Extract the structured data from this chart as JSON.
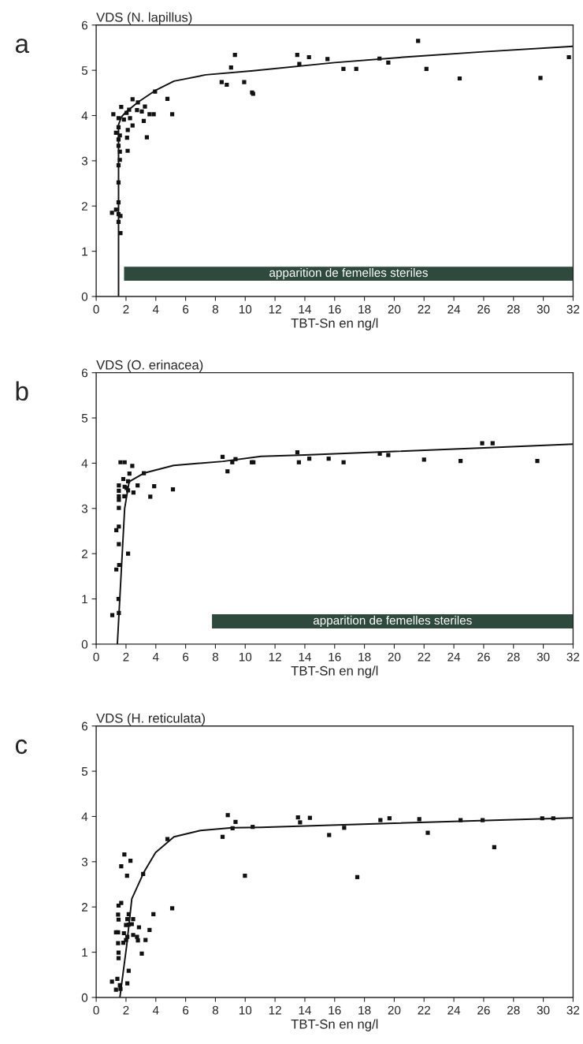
{
  "chart_data": [
    {
      "type": "scatter",
      "title": "VDS (N. lapillus)",
      "xlabel": "TBT-Sn en ng/l",
      "annotations": [
        "a"
      ],
      "grid": false,
      "legend": false,
      "xlim": [
        0,
        32
      ],
      "ylim": [
        0,
        6
      ],
      "xticks": [
        0,
        2,
        4,
        6,
        8,
        10,
        12,
        14,
        16,
        18,
        20,
        22,
        24,
        26,
        28,
        30,
        32
      ],
      "yticks": [
        0,
        1,
        2,
        3,
        4,
        5,
        6
      ],
      "bands": [
        {
          "axis": "x",
          "from": 1.87,
          "to": 32,
          "label": "apparition de femelles steriles",
          "color": "#2d4a3c"
        }
      ],
      "series": [
        {
          "marker": "square",
          "color": "#111111",
          "x": [
            1.06,
            1.33,
            1.5,
            1.5,
            1.63,
            1.5,
            1.63,
            1.5,
            1.5,
            1.59,
            1.59,
            1.5,
            1.5,
            1.33,
            1.59,
            1.5,
            1.5,
            1.15,
            1.68,
            1.86,
            2.04,
            2.21,
            2.27,
            2.12,
            2.07,
            2.11,
            2.44,
            2.44,
            2.8,
            2.74,
            3.06,
            3.27,
            3.19,
            3.4,
            3.58,
            3.86,
            3.95,
            4.78,
            5.1,
            8.42,
            8.76,
            9.05,
            9.31,
            9.93,
            10.46,
            10.53,
            13.49,
            13.63,
            14.28,
            15.52,
            16.59,
            17.45,
            19.01,
            19.6,
            21.6,
            22.16,
            24.39,
            29.81,
            31.72
          ],
          "values": [
            1.85,
            1.92,
            2.08,
            1.82,
            1.78,
            1.65,
            1.4,
            2.52,
            2.9,
            3.02,
            3.2,
            3.33,
            3.47,
            3.62,
            3.56,
            3.74,
            3.94,
            4.03,
            4.19,
            3.91,
            4.06,
            4.13,
            3.94,
            3.68,
            3.51,
            3.22,
            3.78,
            4.36,
            4.29,
            4.12,
            4.09,
            4.2,
            3.88,
            3.52,
            4.03,
            4.03,
            4.53,
            4.37,
            4.03,
            4.74,
            4.68,
            5.06,
            5.34,
            4.74,
            4.51,
            4.48,
            5.34,
            5.14,
            5.29,
            5.25,
            5.03,
            5.03,
            5.26,
            5.17,
            5.65,
            5.03,
            4.82,
            4.83,
            5.29
          ]
        },
        {
          "type": "line",
          "marker": "none",
          "color": "#111111",
          "x": [
            1.5,
            1.5,
            1.7,
            2.0,
            2.83,
            3.95,
            5.22,
            7.35,
            10.53,
            16,
            21,
            26,
            32
          ],
          "values": [
            0,
            3.8,
            3.97,
            4.08,
            4.3,
            4.55,
            4.76,
            4.9,
            4.99,
            5.17,
            5.3,
            5.41,
            5.53
          ]
        }
      ]
    },
    {
      "type": "scatter",
      "title": "VDS (O. erinacea)",
      "xlabel": "TBT-Sn en ng/l",
      "annotations": [
        "b"
      ],
      "grid": false,
      "legend": false,
      "xlim": [
        0,
        32
      ],
      "ylim": [
        0,
        6
      ],
      "xticks": [
        0,
        2,
        4,
        6,
        8,
        10,
        12,
        14,
        16,
        18,
        20,
        22,
        24,
        26,
        28,
        30,
        32
      ],
      "yticks": [
        0,
        1,
        2,
        3,
        4,
        5,
        6
      ],
      "bands": [
        {
          "axis": "x",
          "from": 7.77,
          "to": 32,
          "label": "apparition de femelles steriles",
          "color": "#2d4a3c"
        }
      ],
      "series": [
        {
          "marker": "square",
          "color": "#111111",
          "x": [
            1.08,
            1.52,
            1.5,
            1.35,
            1.54,
            2.14,
            1.52,
            1.35,
            1.52,
            1.52,
            1.52,
            1.52,
            1.52,
            1.52,
            1.63,
            1.91,
            2.42,
            2.23,
            1.82,
            2.14,
            1.91,
            2.04,
            2.14,
            1.89,
            2.5,
            2.78,
            3.2,
            3.63,
            3.89,
            5.15,
            8.48,
            8.81,
            9.13,
            9.35,
            10.44,
            10.55,
            13.5,
            13.6,
            14.3,
            15.6,
            16.6,
            19.03,
            19.6,
            22.0,
            24.45,
            25.9,
            26.6,
            29.6
          ],
          "values": [
            0.64,
            0.69,
            1.0,
            1.65,
            1.75,
            2.0,
            2.21,
            2.52,
            2.6,
            3.01,
            3.19,
            3.27,
            3.39,
            3.51,
            4.02,
            4.02,
            3.94,
            3.77,
            3.65,
            3.6,
            3.48,
            3.45,
            3.4,
            3.27,
            3.35,
            3.51,
            3.78,
            3.26,
            3.49,
            3.42,
            4.14,
            3.82,
            4.02,
            4.09,
            4.02,
            4.02,
            4.24,
            4.02,
            4.1,
            4.1,
            4.02,
            4.21,
            4.18,
            4.08,
            4.05,
            4.44,
            4.44,
            4.05
          ]
        },
        {
          "type": "line",
          "marker": "none",
          "color": "#111111",
          "x": [
            1.42,
            1.91,
            2.21,
            3.2,
            5.2,
            8.5,
            11.06,
            14,
            20,
            26,
            32
          ],
          "values": [
            0,
            3.0,
            3.59,
            3.78,
            3.95,
            4.04,
            4.15,
            4.18,
            4.26,
            4.34,
            4.42
          ]
        }
      ]
    },
    {
      "type": "scatter",
      "title": "VDS (H. reticulata)",
      "xlabel": "TBT-Sn en ng/l",
      "annotations": [
        "c"
      ],
      "grid": false,
      "legend": false,
      "xlim": [
        0,
        32
      ],
      "ylim": [
        0,
        6
      ],
      "xticks": [
        0,
        2,
        4,
        6,
        8,
        10,
        12,
        14,
        16,
        18,
        20,
        22,
        24,
        26,
        28,
        30,
        32
      ],
      "yticks": [
        0,
        1,
        2,
        3,
        4,
        5,
        6
      ],
      "series": [
        {
          "marker": "square",
          "color": "#111111",
          "x": [
            1.06,
            1.33,
            1.42,
            1.59,
            1.63,
            2.09,
            2.18,
            1.5,
            1.5,
            1.47,
            1.33,
            1.47,
            1.82,
            1.86,
            2.0,
            2.09,
            2.0,
            2.18,
            2.09,
            2.18,
            2.48,
            2.39,
            2.48,
            2.74,
            2.8,
            2.87,
            3.06,
            3.31,
            3.58,
            3.84,
            1.5,
            1.47,
            1.5,
            1.68,
            1.68,
            1.89,
            2.3,
            2.07,
            3.15,
            5.1,
            4.78,
            8.48,
            8.83,
            9.35,
            9.15,
            9.98,
            10.5,
            13.54,
            13.68,
            14.34,
            15.63,
            16.64,
            17.52,
            19.07,
            19.68,
            21.68,
            22.25,
            24.45,
            25.93,
            26.71,
            29.93,
            30.67
          ],
          "values": [
            0.35,
            0.17,
            0.41,
            0.27,
            0.19,
            0.31,
            0.59,
            0.87,
            0.99,
            1.2,
            1.44,
            1.44,
            1.21,
            1.42,
            1.27,
            1.34,
            1.6,
            1.61,
            1.73,
            1.84,
            1.73,
            1.62,
            1.38,
            1.34,
            1.26,
            1.55,
            0.97,
            1.27,
            1.49,
            1.84,
            1.72,
            1.83,
            2.03,
            2.09,
            2.9,
            3.16,
            3.02,
            2.69,
            2.73,
            1.97,
            3.5,
            3.55,
            4.03,
            3.88,
            3.74,
            2.69,
            3.77,
            3.98,
            3.87,
            3.97,
            3.59,
            3.75,
            2.66,
            3.92,
            3.96,
            3.94,
            3.64,
            3.92,
            3.92,
            3.32,
            3.96,
            3.96
          ]
        },
        {
          "type": "line",
          "marker": "none",
          "color": "#111111",
          "x": [
            1.59,
            2.04,
            2.39,
            3.19,
            3.98,
            5.22,
            6.99,
            9.12,
            11.06,
            20,
            32
          ],
          "values": [
            0,
            1.13,
            2.18,
            2.76,
            3.2,
            3.55,
            3.69,
            3.75,
            3.76,
            3.85,
            3.97
          ]
        }
      ]
    }
  ]
}
